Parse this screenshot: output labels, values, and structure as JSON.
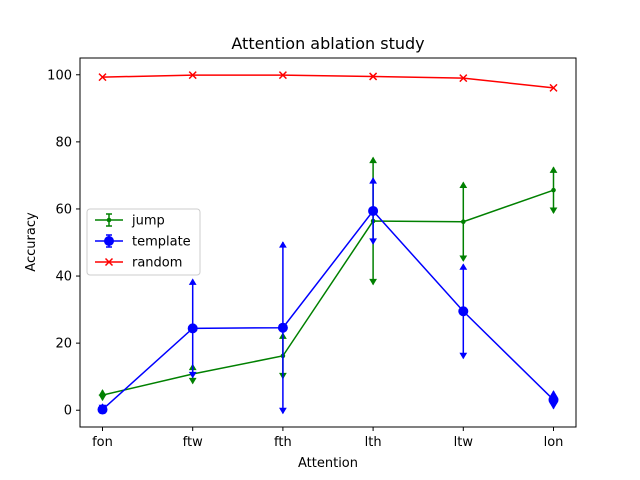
{
  "chart_data": {
    "type": "line",
    "title": "Attention ablation study",
    "xlabel": "Attention",
    "ylabel": "Accuracy",
    "categories": [
      "fon",
      "ftw",
      "fth",
      "lth",
      "ltw",
      "lon"
    ],
    "ylim": [
      -5,
      105
    ],
    "yticks": [
      0,
      20,
      40,
      60,
      80,
      100
    ],
    "grid": false,
    "legend_position": "center-left",
    "series": [
      {
        "name": "jump",
        "color": "#008000",
        "marker": "point",
        "values": [
          4.5,
          10.8,
          16.2,
          56.4,
          56.2,
          65.6
        ],
        "err_low": [
          1.5,
          2.8,
          6.7,
          18.9,
          11.7,
          6.8
        ],
        "err_high": [
          1.5,
          2.8,
          6.7,
          18.9,
          11.7,
          6.8
        ]
      },
      {
        "name": "template",
        "color": "#0000ff",
        "marker": "circle",
        "values": [
          0.2,
          24.4,
          24.6,
          59.4,
          29.5,
          3.1
        ],
        "err_low": [
          0.2,
          14.6,
          25.5,
          9.8,
          14.0,
          2.6
        ],
        "err_high": [
          1.6,
          14.6,
          25.5,
          9.8,
          14.0,
          2.6
        ]
      },
      {
        "name": "random",
        "color": "#ff0000",
        "marker": "x",
        "values": [
          99.3,
          99.9,
          99.9,
          99.5,
          99.0,
          96.1
        ]
      }
    ]
  }
}
